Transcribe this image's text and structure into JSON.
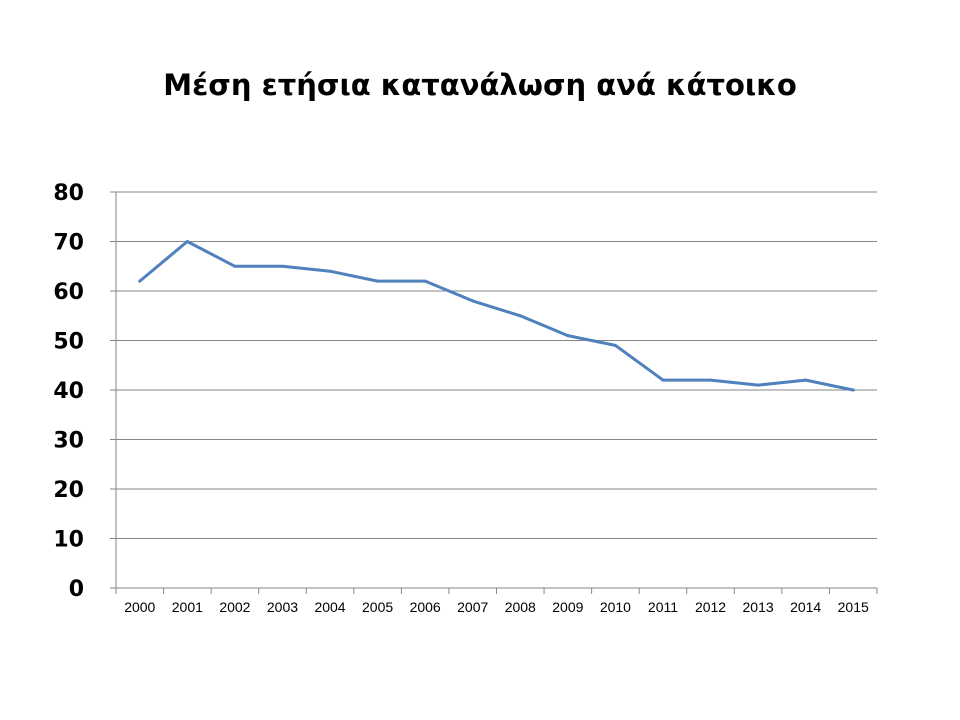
{
  "chart_data": {
    "type": "line",
    "title": "Μέση ετήσια κατανάλωση ανά κάτοικο",
    "xlabel": "",
    "ylabel": "",
    "categories": [
      "2000",
      "2001",
      "2002",
      "2003",
      "2004",
      "2005",
      "2006",
      "2007",
      "2008",
      "2009",
      "2010",
      "2011",
      "2012",
      "2013",
      "2014",
      "2015"
    ],
    "series": [
      {
        "values": [
          62,
          70,
          65,
          65,
          64,
          62,
          62,
          58,
          55,
          51,
          49,
          42,
          42,
          41,
          42,
          40
        ]
      }
    ],
    "ylim": [
      0,
      80
    ],
    "yticks": [
      "0",
      "10",
      "20",
      "30",
      "40",
      "50",
      "60",
      "70",
      "80"
    ],
    "grid": true,
    "legend": "none",
    "colors": {
      "line": "#4F81BD",
      "grid": "#868686",
      "axis": "#868686"
    }
  }
}
